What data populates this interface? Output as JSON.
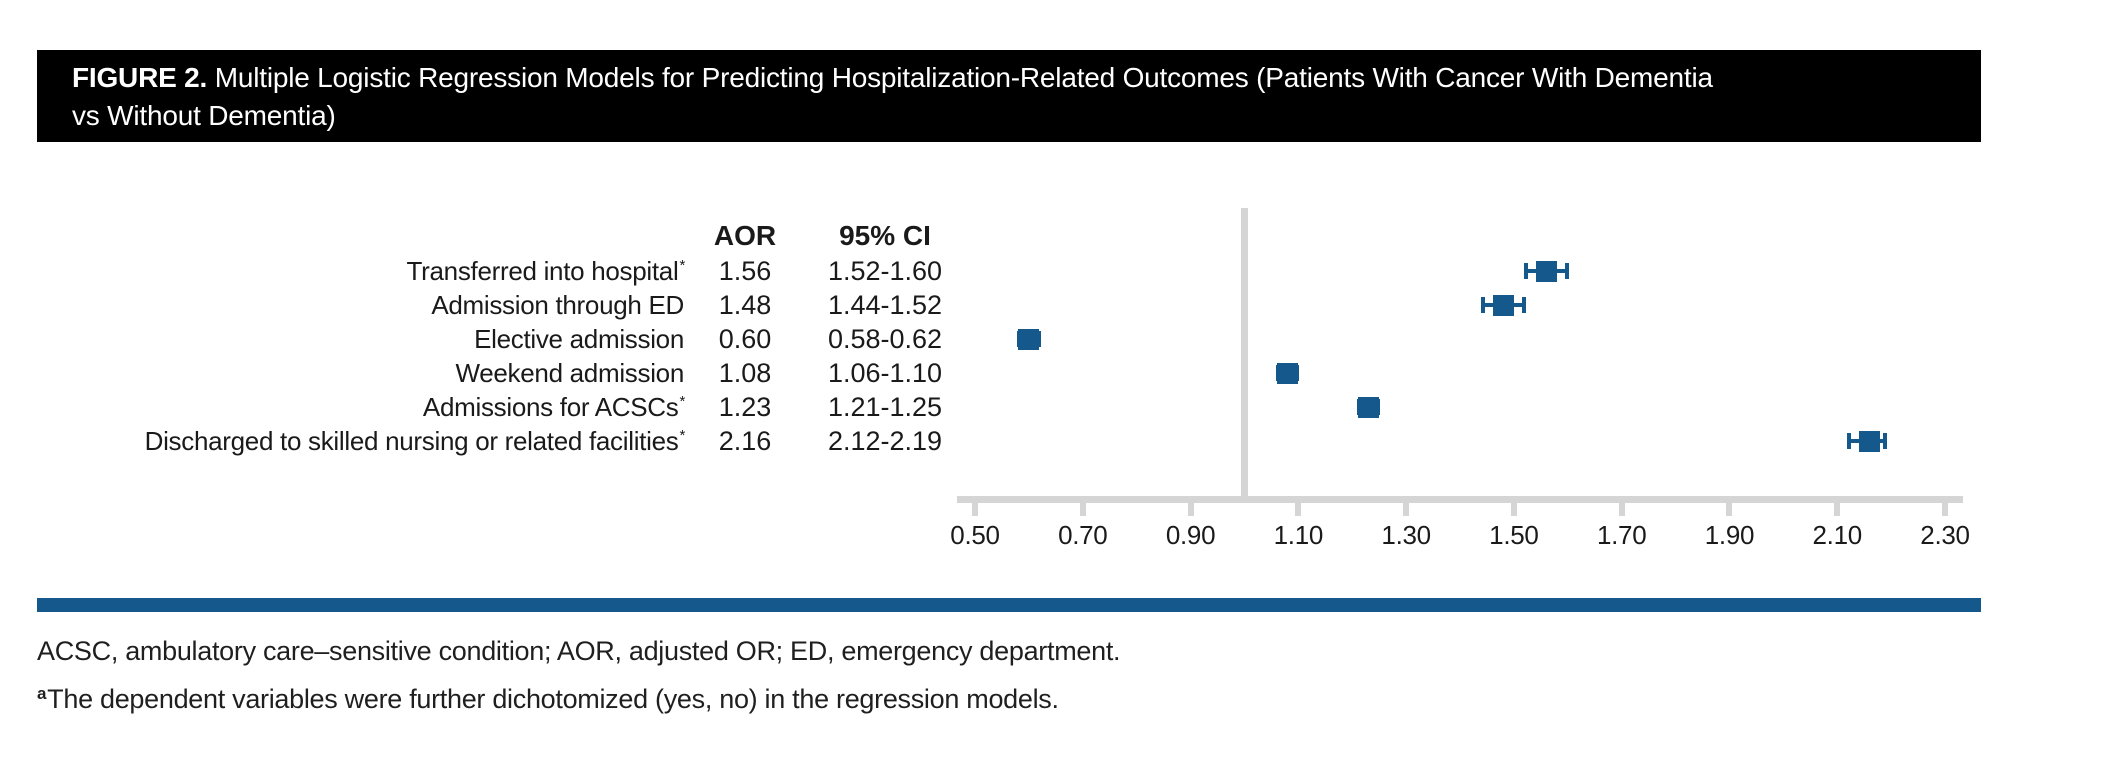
{
  "header": {
    "figure_label": "FIGURE 2.",
    "title_line1": "Multiple Logistic Regression Models for Predicting Hospitalization-Related Outcomes (Patients With Cancer With Dementia",
    "title_line2": "vs Without Dementia)"
  },
  "table": {
    "aor_header": "AOR",
    "ci_header": "95% CI"
  },
  "chart_data": {
    "type": "forest",
    "title": "Multiple Logistic Regression Models for Predicting Hospitalization-Related Outcomes (Patients With Cancer With Dementia vs Without Dementia)",
    "axis": {
      "min": 0.5,
      "max": 2.3,
      "ref_line": 1.0,
      "tick_labels": [
        "0.50",
        "0.70",
        "0.90",
        "1.10",
        "1.30",
        "1.50",
        "1.70",
        "1.90",
        "2.10",
        "2.30"
      ]
    },
    "rows": [
      {
        "label": "Transferred into hospital",
        "sup": "*",
        "aor": 1.56,
        "aor_text": "1.56",
        "ci_text": "1.52-1.60",
        "ci_low": 1.52,
        "ci_high": 1.6
      },
      {
        "label": "Admission through ED",
        "sup": "",
        "aor": 1.48,
        "aor_text": "1.48",
        "ci_text": "1.44-1.52",
        "ci_low": 1.44,
        "ci_high": 1.52
      },
      {
        "label": "Elective admission",
        "sup": "",
        "aor": 0.6,
        "aor_text": "0.60",
        "ci_text": "0.58-0.62",
        "ci_low": 0.58,
        "ci_high": 0.62
      },
      {
        "label": "Weekend admission",
        "sup": "",
        "aor": 1.08,
        "aor_text": "1.08",
        "ci_text": "1.06-1.10",
        "ci_low": 1.06,
        "ci_high": 1.1
      },
      {
        "label": "Admissions for ACSCs",
        "sup": "*",
        "aor": 1.23,
        "aor_text": "1.23",
        "ci_text": "1.21-1.25",
        "ci_low": 1.21,
        "ci_high": 1.25
      },
      {
        "label": "Discharged to skilled nursing or related facilities",
        "sup": "*",
        "aor": 2.16,
        "aor_text": "2.16",
        "ci_text": "2.12-2.19",
        "ci_low": 2.12,
        "ci_high": 2.19
      }
    ]
  },
  "footnotes": {
    "abbreviations": "ACSC, ambulatory care–sensitive condition; AOR, adjusted OR; ED, emergency department.",
    "note_sup": "a",
    "note_text": "The dependent variables were further dichotomized (yes, no) in the regression models."
  },
  "colors": {
    "accent_blue": "#14588C",
    "axis_gray": "#D5D5D5",
    "header_bg": "#000000",
    "header_text": "#FFFFFF"
  }
}
